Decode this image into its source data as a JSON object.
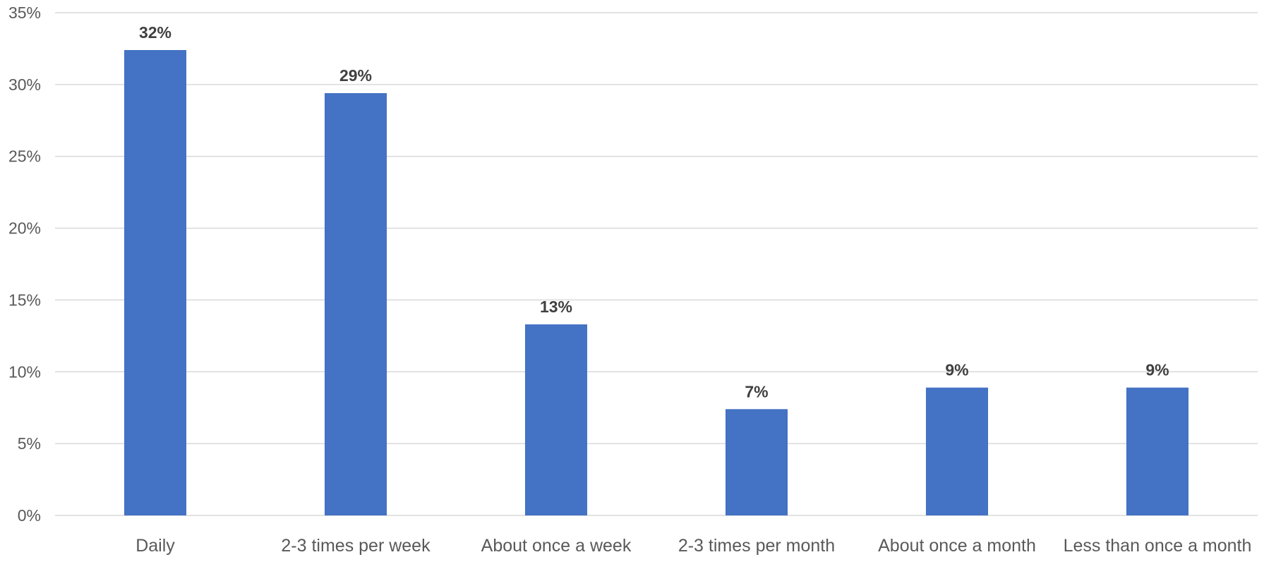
{
  "chart_data": {
    "type": "bar",
    "categories": [
      "Daily",
      "2-3 times per week",
      "About once a week",
      "2-3 times per month",
      "About once a month",
      "Less than once a month"
    ],
    "values": [
      32.4,
      29.4,
      13.3,
      7.4,
      8.9,
      8.9
    ],
    "data_labels": [
      "32%",
      "29%",
      "13%",
      "7%",
      "9%",
      "9%"
    ],
    "y_ticks": [
      "0%",
      "5%",
      "10%",
      "15%",
      "20%",
      "25%",
      "30%",
      "35%"
    ],
    "ylim": [
      0,
      35
    ],
    "y_unit": "%",
    "grid": true,
    "legend": "none",
    "bar_color": "#4472C4",
    "grid_color": "#D9D9D9",
    "title": "",
    "xlabel": "",
    "ylabel": ""
  }
}
